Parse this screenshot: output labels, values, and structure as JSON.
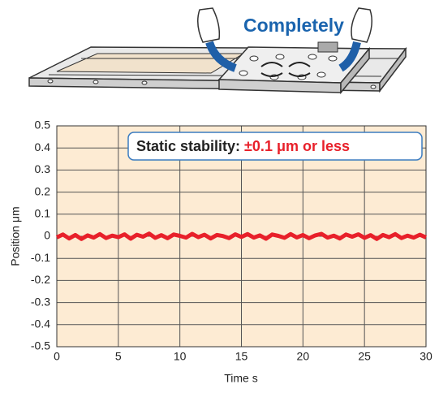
{
  "chart_data": {
    "type": "line",
    "title": "Completely",
    "annotation": {
      "label": "Static stability:",
      "highlight": "±0.1 μm or less"
    },
    "x_label": "Time s",
    "y_label": "Position μm",
    "x": [
      0,
      0.5,
      1,
      1.5,
      2,
      2.5,
      3,
      3.5,
      4,
      4.5,
      5,
      5.5,
      6,
      6.5,
      7,
      7.5,
      8,
      8.5,
      9,
      9.5,
      10,
      10.5,
      11,
      11.5,
      12,
      12.5,
      13,
      13.5,
      14,
      14.5,
      15,
      15.5,
      16,
      16.5,
      17,
      17.5,
      18,
      18.5,
      19,
      19.5,
      20,
      20.5,
      21,
      21.5,
      22,
      22.5,
      23,
      23.5,
      24,
      24.5,
      25,
      25.5,
      26,
      26.5,
      27,
      27.5,
      28,
      28.5,
      29,
      29.5,
      30
    ],
    "values": [
      -0.005,
      0.008,
      -0.01,
      0.006,
      -0.012,
      0.004,
      -0.006,
      0.01,
      -0.008,
      0.003,
      -0.004,
      0.009,
      -0.011,
      0.007,
      -0.002,
      0.012,
      -0.007,
      0.005,
      -0.009,
      0.008,
      0.002,
      -0.006,
      0.011,
      -0.004,
      0.007,
      -0.01,
      0.006,
      0.001,
      -0.008,
      0.009,
      -0.003,
      0.01,
      -0.006,
      0.004,
      -0.011,
      0.008,
      0.002,
      -0.007,
      0.01,
      -0.005,
      0.006,
      -0.009,
      0.004,
      0.011,
      -0.006,
      0.003,
      -0.01,
      0.008,
      -0.002,
      0.009,
      -0.007,
      0.005,
      -0.012,
      0.006,
      -0.004,
      0.01,
      -0.008,
      0.003,
      -0.006,
      0.007,
      -0.005
    ],
    "color": "#e8202a",
    "background": "#fdebd3",
    "xlim": [
      0,
      30
    ],
    "xticks": [
      0,
      5,
      10,
      15,
      20,
      25,
      30
    ],
    "ylim": [
      -0.5,
      0.5
    ],
    "yticks": [
      0.5,
      0.4,
      0.3,
      0.2,
      0.1,
      0,
      -0.1,
      -0.2,
      -0.3,
      -0.4,
      -0.5
    ],
    "grid": true
  }
}
